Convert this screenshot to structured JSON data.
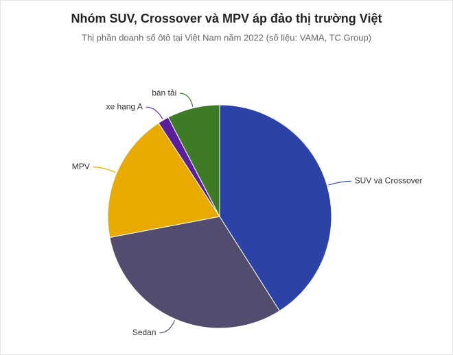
{
  "chart_data": {
    "type": "pie",
    "title": "Nhóm SUV, Crossover và MPV áp đảo thị trường Việt",
    "subtitle": "Thị phần doanh số ôtô tại Việt Nam năm 2022 (số liệu: VAMA, TC Group)",
    "categories": [
      "SUV và Crossover",
      "Sedan",
      "MPV",
      "xe hạng A",
      "bán tải"
    ],
    "values": [
      41,
      31,
      18.8,
      1.6,
      7.6
    ],
    "colors": [
      "#2b43a6",
      "#524c6e",
      "#e9aa00",
      "#5b1f9c",
      "#3e7b27"
    ]
  }
}
